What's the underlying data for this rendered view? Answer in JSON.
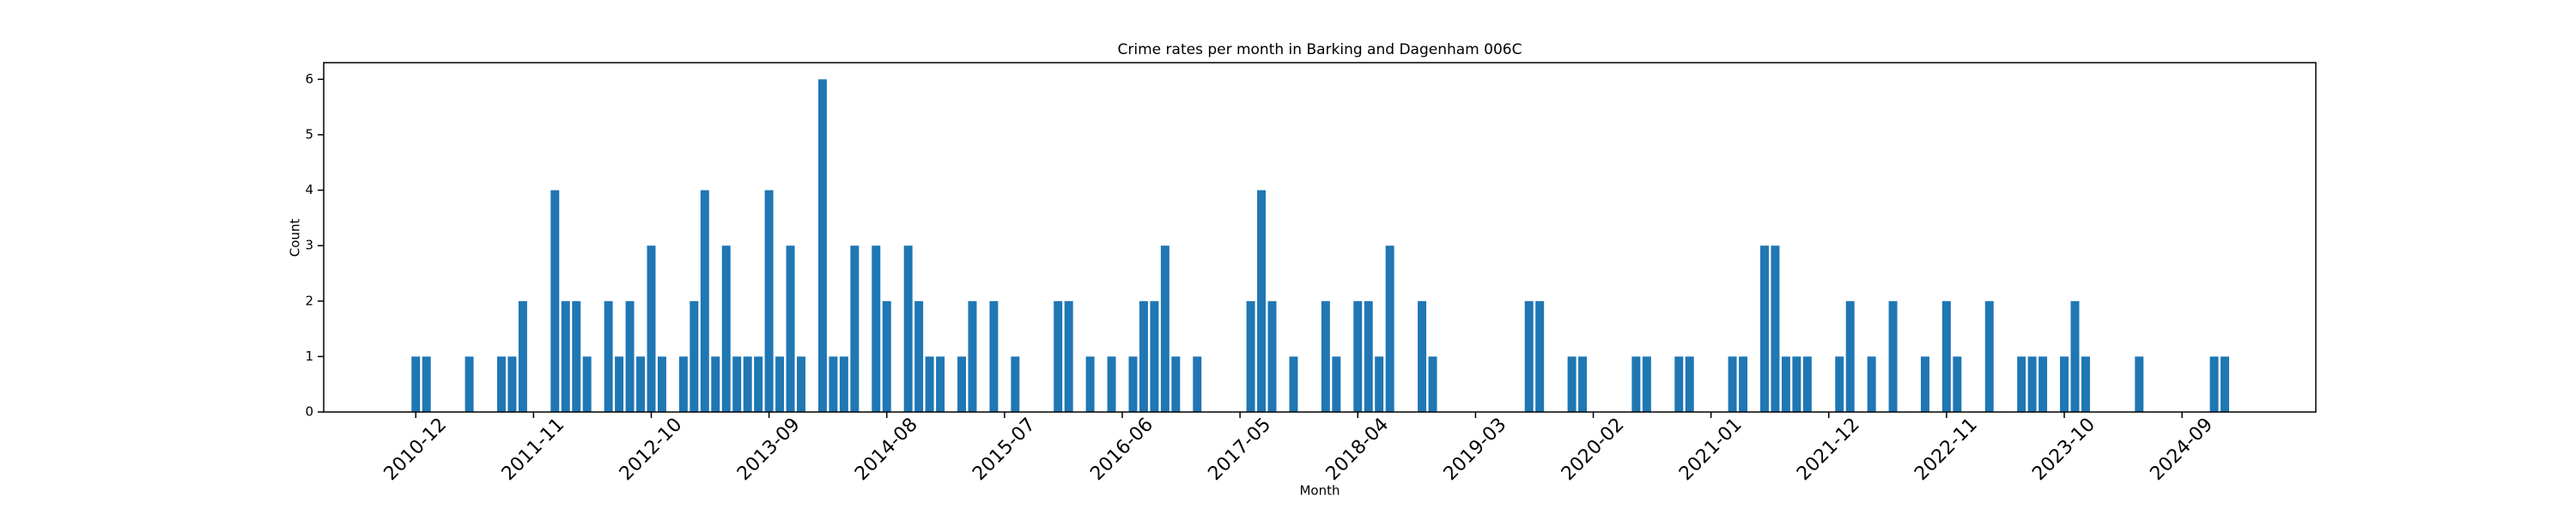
{
  "chart_data": {
    "type": "bar",
    "title": "Crime rates per month in Barking and Dagenham 006C",
    "x_label": "Month",
    "y_label": "Count",
    "color": "#1f77b4",
    "categories": [
      "2010-12",
      null,
      null,
      null,
      null,
      null,
      null,
      null,
      null,
      null,
      null,
      "2011-11",
      null,
      null,
      null,
      null,
      null,
      null,
      null,
      null,
      null,
      null,
      "2012-10",
      null,
      null,
      null,
      null,
      null,
      null,
      null,
      null,
      null,
      null,
      "2013-09",
      null,
      null,
      null,
      null,
      null,
      null,
      null,
      null,
      null,
      null,
      "2014-08",
      null,
      null,
      null,
      null,
      null,
      null,
      null,
      null,
      null,
      null,
      "2015-07",
      null,
      null,
      null,
      null,
      null,
      null,
      null,
      null,
      null,
      null,
      "2016-06",
      null,
      null,
      null,
      null,
      null,
      null,
      null,
      null,
      null,
      null,
      "2017-05",
      null,
      null,
      null,
      null,
      null,
      null,
      null,
      null,
      null,
      null,
      "2018-04",
      null,
      null,
      null,
      null,
      null,
      null,
      null,
      null,
      null,
      null,
      "2019-03",
      null,
      null,
      null,
      null,
      null,
      null,
      null,
      null,
      null,
      null,
      "2020-02",
      null,
      null,
      null,
      null,
      null,
      null,
      null,
      null,
      null,
      null,
      "2021-01",
      null,
      null,
      null,
      null,
      null,
      null,
      null,
      null,
      null,
      null,
      "2021-12",
      null,
      null,
      null,
      null,
      null,
      null,
      null,
      null,
      null,
      null,
      "2022-11",
      null,
      null,
      null,
      null,
      null,
      null,
      null,
      null,
      null,
      null,
      "2023-10",
      null,
      null,
      null,
      null,
      null,
      null,
      null,
      null,
      null,
      null,
      "2024-09",
      null,
      null,
      null,
      null
    ],
    "values": [
      1,
      1,
      0,
      0,
      0,
      1,
      0,
      0,
      1,
      1,
      2,
      0,
      0,
      4,
      2,
      2,
      1,
      0,
      2,
      1,
      2,
      1,
      3,
      1,
      0,
      1,
      2,
      4,
      1,
      3,
      1,
      1,
      1,
      4,
      1,
      3,
      1,
      0,
      6,
      1,
      1,
      3,
      0,
      3,
      2,
      0,
      3,
      2,
      1,
      1,
      0,
      1,
      2,
      0,
      2,
      0,
      1,
      0,
      0,
      0,
      2,
      2,
      0,
      1,
      0,
      1,
      0,
      1,
      2,
      2,
      3,
      1,
      0,
      1,
      0,
      0,
      0,
      0,
      2,
      4,
      2,
      0,
      1,
      0,
      0,
      2,
      1,
      0,
      2,
      2,
      1,
      3,
      0,
      0,
      2,
      1,
      0,
      0,
      0,
      0,
      0,
      0,
      0,
      0,
      2,
      2,
      0,
      0,
      1,
      1,
      0,
      0,
      0,
      0,
      1,
      1,
      0,
      0,
      1,
      1,
      0,
      0,
      0,
      1,
      1,
      0,
      3,
      3,
      1,
      1,
      1,
      0,
      0,
      1,
      2,
      0,
      1,
      0,
      2,
      0,
      0,
      1,
      0,
      2,
      1,
      0,
      0,
      2,
      0,
      0,
      1,
      1,
      1,
      0,
      1,
      2,
      1,
      0,
      0,
      0,
      0,
      1,
      0,
      0,
      0,
      0,
      0,
      0,
      1,
      1
    ],
    "ylim": [
      0,
      6.3
    ],
    "yticks": [
      0,
      1,
      2,
      3,
      4,
      5,
      6
    ]
  }
}
